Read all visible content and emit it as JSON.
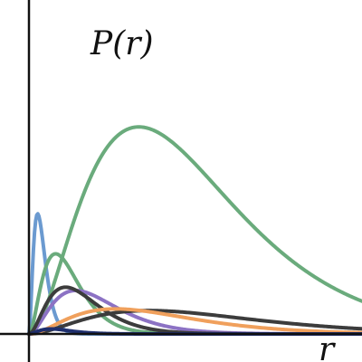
{
  "chart_data": {
    "type": "line",
    "title": "",
    "ylabel": "P(r)",
    "xlabel": "r",
    "xlim": [
      0,
      1
    ],
    "ylim": [
      0,
      1
    ],
    "grid": false,
    "legend": "none",
    "axis_color": "#111111",
    "series": [
      {
        "color": "#6b9ad0",
        "peak_r": 0.04,
        "peak_value": 0.36,
        "shape": [
          3.0,
          0.013
        ]
      },
      {
        "color": "#6aab7c",
        "peak_r": 0.12,
        "peak_value": 0.24,
        "shape": [
          3.0,
          0.04
        ]
      },
      {
        "color": "#6aab7c",
        "peak_r": 0.49,
        "peak_value": 0.62,
        "shape": [
          3.0,
          0.165
        ]
      },
      {
        "color": "#8c72c4",
        "peak_r": 0.21,
        "peak_value": 0.13,
        "shape": [
          3.0,
          0.07
        ]
      },
      {
        "color": "#3c3c3c",
        "peak_r": 0.17,
        "peak_value": 0.14,
        "shape": [
          3.0,
          0.055
        ]
      },
      {
        "color": "#3c3c3c",
        "peak_r": 0.55,
        "peak_value": 0.07,
        "shape": [
          3.0,
          0.18
        ]
      },
      {
        "color": "#f0a05c",
        "peak_r": 0.39,
        "peak_value": 0.075,
        "shape": [
          3.0,
          0.13
        ]
      },
      {
        "color": "#1f2f6e",
        "peak_r": 0.1,
        "peak_value": 0.015,
        "shape": [
          3.0,
          0.033
        ]
      }
    ]
  }
}
